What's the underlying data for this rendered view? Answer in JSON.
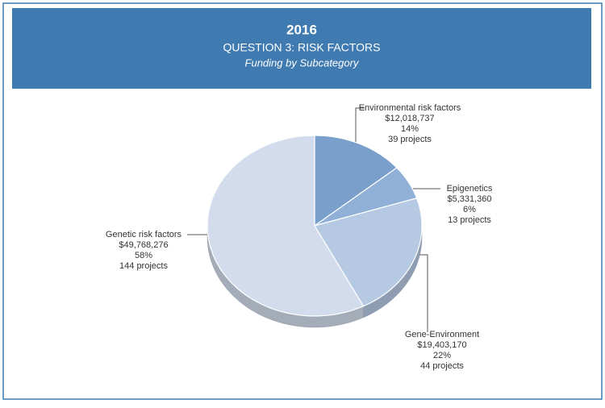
{
  "chart_data": {
    "type": "pie",
    "year": "2016",
    "title": "QUESTION 3: RISK FACTORS",
    "subtitle": "Funding by Subcategory",
    "categories": [
      "Environmental risk factors",
      "Epigenetics",
      "Gene-Environment",
      "Genetic risk factors"
    ],
    "values": [
      12018737,
      5331360,
      19403170,
      49768276
    ],
    "value_labels": [
      "$12,018,737",
      "$5,331,360",
      "$19,403,170",
      "$49,768,276"
    ],
    "percents": [
      14,
      6,
      22,
      58
    ],
    "percent_labels": [
      "14%",
      "6%",
      "22%",
      "58%"
    ],
    "projects": [
      39,
      13,
      44,
      144
    ],
    "project_labels": [
      "39 projects",
      "13 projects",
      "44 projects",
      "144 projects"
    ],
    "colors": [
      "#7a9fcb",
      "#91b0d7",
      "#b6c9e3",
      "#d2dcec"
    ]
  }
}
